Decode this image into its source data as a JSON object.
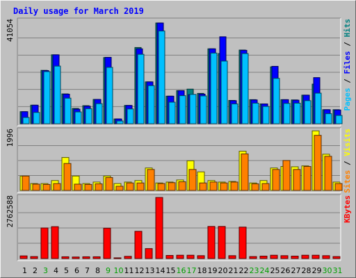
{
  "chart_data": [
    {
      "type": "bar",
      "panel": "top",
      "title": "Daily usage for March 2019",
      "ymax_label": "41054",
      "ylabel_parts": [
        {
          "text": "Pages",
          "color": "#00C0FF"
        },
        {
          "text": " / ",
          "color": "#000000"
        },
        {
          "text": "Files",
          "color": "#0000FF"
        },
        {
          "text": " / ",
          "color": "#000000"
        },
        {
          "text": "Hits",
          "color": "#008080"
        }
      ],
      "ylim": [
        0,
        41054
      ],
      "categories": [
        "1",
        "2",
        "3",
        "4",
        "5",
        "6",
        "7",
        "8",
        "9",
        "10",
        "11",
        "12",
        "13",
        "14",
        "15",
        "16",
        "17",
        "18",
        "19",
        "20",
        "21",
        "22",
        "23",
        "24",
        "25",
        "26",
        "27",
        "28",
        "29",
        "30",
        "31"
      ],
      "series": [
        {
          "name": "Hits",
          "color": "#008080",
          "values": [
            4800,
            7400,
            21300,
            27500,
            11900,
            6100,
            7200,
            9700,
            26400,
            1900,
            7300,
            30400,
            16700,
            40200,
            11000,
            13200,
            13800,
            12100,
            29900,
            28000,
            9300,
            29400,
            9600,
            7900,
            22700,
            9600,
            9500,
            11400,
            15800,
            5600,
            5600
          ]
        },
        {
          "name": "Files",
          "color": "#0000FF",
          "values": [
            4800,
            7400,
            21200,
            27500,
            11800,
            5800,
            7000,
            9700,
            26500,
            1900,
            7300,
            29900,
            16700,
            40200,
            11000,
            13200,
            11600,
            11800,
            29900,
            34700,
            9200,
            29300,
            9500,
            7900,
            22900,
            9600,
            9400,
            11400,
            18400,
            5600,
            5500
          ]
        },
        {
          "name": "Pages",
          "color": "#00C0FF",
          "values": [
            2500,
            4500,
            20800,
            23000,
            10200,
            4700,
            6000,
            8000,
            22500,
            1100,
            5900,
            27700,
            15200,
            37000,
            8600,
            11200,
            11700,
            11100,
            28200,
            25000,
            7900,
            28000,
            8200,
            6900,
            18100,
            8100,
            8200,
            9200,
            12200,
            4000,
            3300
          ]
        }
      ]
    },
    {
      "type": "bar",
      "panel": "middle",
      "ymax_label": "1996",
      "ylabel_parts": [
        {
          "text": "Sites",
          "color": "#FF8000"
        },
        {
          "text": " / ",
          "color": "#000000"
        },
        {
          "text": "Visits",
          "color": "#FFFF00"
        }
      ],
      "ylim": [
        0,
        1996
      ],
      "categories": [
        "1",
        "2",
        "3",
        "4",
        "5",
        "6",
        "7",
        "8",
        "9",
        "10",
        "11",
        "12",
        "13",
        "14",
        "15",
        "16",
        "17",
        "18",
        "19",
        "20",
        "21",
        "22",
        "23",
        "24",
        "25",
        "26",
        "27",
        "28",
        "29",
        "30",
        "31"
      ],
      "series": [
        {
          "name": "Visits",
          "color": "#FFFF00",
          "values": [
            480,
            230,
            230,
            330,
            1100,
            480,
            230,
            280,
            480,
            230,
            280,
            330,
            750,
            250,
            280,
            350,
            990,
            620,
            330,
            280,
            300,
            1310,
            250,
            330,
            750,
            800,
            790,
            820,
            1990,
            1210,
            280
          ]
        },
        {
          "name": "Sites",
          "color": "#FF8000",
          "values": [
            480,
            210,
            200,
            230,
            900,
            210,
            200,
            220,
            430,
            140,
            250,
            250,
            700,
            230,
            260,
            290,
            700,
            250,
            280,
            250,
            280,
            1220,
            220,
            230,
            700,
            1000,
            700,
            800,
            1840,
            1140,
            230
          ]
        }
      ]
    },
    {
      "type": "bar",
      "panel": "bottom",
      "ymax_label": "2762588",
      "ylabel_parts": [
        {
          "text": "KBytes",
          "color": "#FF0000"
        }
      ],
      "ylim": [
        0,
        2762588
      ],
      "categories": [
        "1",
        "2",
        "3",
        "4",
        "5",
        "6",
        "7",
        "8",
        "9",
        "10",
        "11",
        "12",
        "13",
        "14",
        "15",
        "16",
        "17",
        "18",
        "19",
        "20",
        "21",
        "22",
        "23",
        "24",
        "25",
        "26",
        "27",
        "28",
        "29",
        "30",
        "31"
      ],
      "weekend_days": [
        3,
        9,
        10,
        16,
        17,
        23,
        24,
        30,
        31
      ],
      "series": [
        {
          "name": "KBytes",
          "color": "#FF0000",
          "values": [
            120000,
            90000,
            1380000,
            1440000,
            80000,
            70000,
            80000,
            80000,
            1370000,
            30000,
            100000,
            1230000,
            450000,
            2760000,
            140000,
            150000,
            150000,
            130000,
            1450000,
            1450000,
            130000,
            1420000,
            90000,
            110000,
            150000,
            130000,
            110000,
            150000,
            150000,
            130000,
            90000
          ]
        }
      ]
    }
  ]
}
